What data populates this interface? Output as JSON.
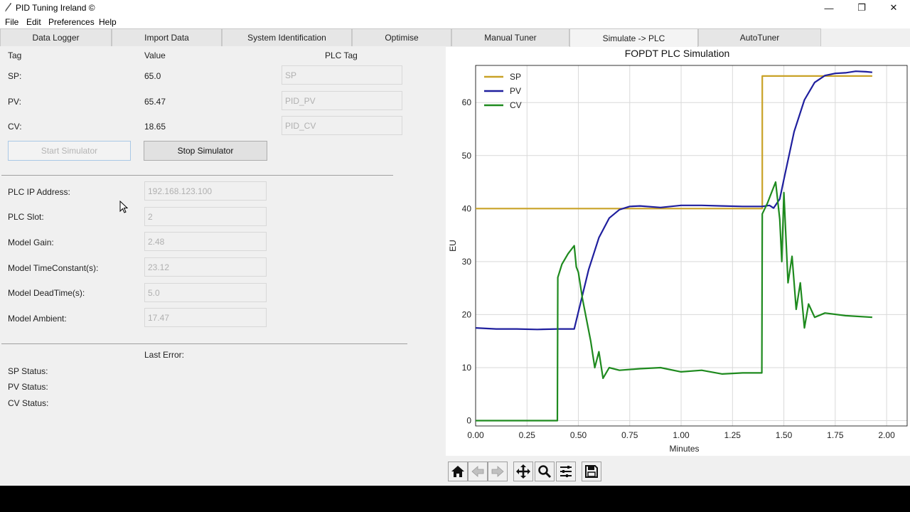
{
  "window": {
    "title": "PID Tuning Ireland ©",
    "controls": {
      "minimize": "—",
      "restore": "❐",
      "close": "✕"
    }
  },
  "menu": [
    "File",
    "Edit",
    "Preferences",
    "Help"
  ],
  "tabs": [
    {
      "label": "Data Logger"
    },
    {
      "label": "Import Data"
    },
    {
      "label": "System Identification"
    },
    {
      "label": "Optimise"
    },
    {
      "label": "Manual Tuner"
    },
    {
      "label": "Simulate -> PLC",
      "active": true
    },
    {
      "label": "AutoTuner"
    }
  ],
  "sim": {
    "headers": {
      "tag": "Tag",
      "value": "Value",
      "plc_tag": "PLC Tag"
    },
    "rows": [
      {
        "label": "SP:",
        "value": "65.0",
        "plc_tag": "SP"
      },
      {
        "label": "PV:",
        "value": "65.47",
        "plc_tag": "PID_PV"
      },
      {
        "label": "CV:",
        "value": "18.65",
        "plc_tag": "PID_CV"
      }
    ],
    "start_label": "Start Simulator",
    "stop_label": "Stop Simulator"
  },
  "config": [
    {
      "label": "PLC IP Address:",
      "value": "192.168.123.100"
    },
    {
      "label": "PLC Slot:",
      "value": "2"
    },
    {
      "label": "Model Gain:",
      "value": "2.48"
    },
    {
      "label": "Model TimeConstant(s):",
      "value": "23.12"
    },
    {
      "label": "Model DeadTime(s):",
      "value": "5.0"
    },
    {
      "label": "Model Ambient:",
      "value": "17.47"
    }
  ],
  "status": {
    "last_error_label": "Last Error:",
    "sp_label": "SP Status:",
    "pv_label": "PV Status:",
    "cv_label": "CV Status:"
  },
  "chart_data": {
    "type": "line",
    "title": "FOPDT PLC Simulation",
    "xlabel": "Minutes",
    "ylabel": "EU",
    "xlim": [
      0,
      2.1
    ],
    "ylim": [
      -1,
      67
    ],
    "xticks": [
      0.0,
      0.25,
      0.5,
      0.75,
      1.0,
      1.25,
      1.5,
      1.75,
      2.0
    ],
    "xtick_labels": [
      "0.00",
      "0.25",
      "0.50",
      "0.75",
      "1.00",
      "1.25",
      "1.50",
      "1.75",
      "2.00"
    ],
    "yticks": [
      0,
      10,
      20,
      30,
      40,
      50,
      60
    ],
    "grid": true,
    "legend": "top-left",
    "series": [
      {
        "name": "SP",
        "color": "#c9a227",
        "x": [
          0.0,
          1.395,
          1.395,
          1.93
        ],
        "y": [
          40,
          40,
          65,
          65
        ]
      },
      {
        "name": "PV",
        "color": "#1f1f9e",
        "x": [
          0.0,
          0.1,
          0.2,
          0.3,
          0.4,
          0.48,
          0.5,
          0.55,
          0.6,
          0.65,
          0.7,
          0.75,
          0.8,
          0.9,
          1.0,
          1.1,
          1.2,
          1.3,
          1.395,
          1.43,
          1.45,
          1.48,
          1.5,
          1.55,
          1.6,
          1.65,
          1.7,
          1.75,
          1.8,
          1.85,
          1.9,
          1.93
        ],
        "y": [
          17.5,
          17.3,
          17.3,
          17.2,
          17.3,
          17.3,
          20.5,
          28.5,
          34.5,
          38.2,
          39.8,
          40.4,
          40.5,
          40.2,
          40.6,
          40.6,
          40.5,
          40.4,
          40.4,
          40.6,
          40.1,
          41.8,
          45.5,
          54.5,
          60.5,
          63.8,
          65.1,
          65.5,
          65.6,
          65.9,
          65.8,
          65.7
        ]
      },
      {
        "name": "CV",
        "color": "#1e8a1e",
        "x": [
          0.0,
          0.398,
          0.4,
          0.42,
          0.45,
          0.48,
          0.49,
          0.5,
          0.52,
          0.54,
          0.56,
          0.58,
          0.6,
          0.62,
          0.65,
          0.7,
          0.8,
          0.9,
          1.0,
          1.1,
          1.2,
          1.3,
          1.393,
          1.395,
          1.42,
          1.44,
          1.46,
          1.48,
          1.49,
          1.5,
          1.52,
          1.54,
          1.56,
          1.58,
          1.6,
          1.62,
          1.65,
          1.7,
          1.8,
          1.93
        ],
        "y": [
          0,
          0,
          27,
          29.5,
          31.5,
          33,
          29,
          28,
          23,
          19,
          15,
          10,
          13,
          8,
          10,
          9.5,
          9.8,
          10,
          9.2,
          9.5,
          8.8,
          9,
          9,
          39,
          41,
          43,
          45,
          38,
          30,
          43,
          26,
          31,
          21,
          26,
          17.5,
          22,
          19.5,
          20.3,
          19.8,
          19.5
        ]
      }
    ]
  },
  "toolbar": {
    "icons": [
      "home-icon",
      "back-icon",
      "forward-icon",
      "pan-icon",
      "zoom-icon",
      "configure-icon",
      "save-icon"
    ]
  },
  "colors": {
    "sp": "#c9a227",
    "pv": "#1f1f9e",
    "cv": "#1e8a1e"
  }
}
